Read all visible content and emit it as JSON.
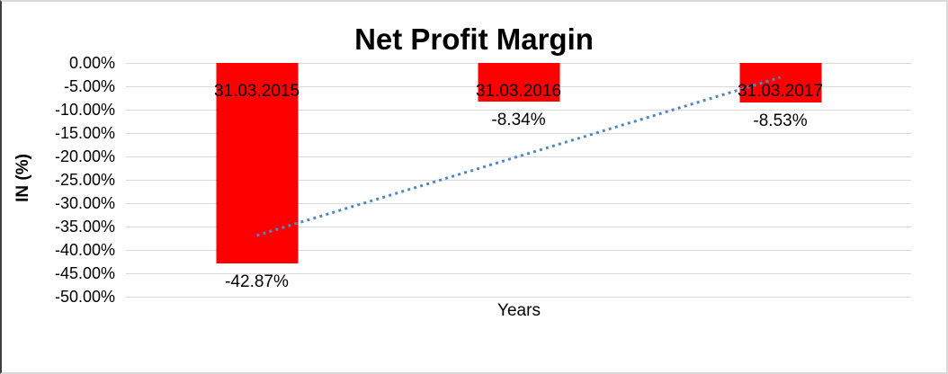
{
  "chart_data": {
    "type": "bar",
    "title": "Net Profit Margin",
    "xlabel": "Years",
    "ylabel": "IN (%)",
    "categories": [
      "31.03.2015",
      "31.03.2016",
      "31.03.2017"
    ],
    "values": [
      -42.87,
      -8.34,
      -8.53
    ],
    "data_labels": [
      "-42.87%",
      "-8.34%",
      "-8.53%"
    ],
    "yticks": [
      "0.00%",
      "-5.00%",
      "-10.00%",
      "-15.00%",
      "-20.00%",
      "-25.00%",
      "-30.00%",
      "-35.00%",
      "-40.00%",
      "-45.00%",
      "-50.00%"
    ],
    "ylim": [
      -50,
      0
    ],
    "grid": "horizontal",
    "legend": "none",
    "bar_color": "#ff0000",
    "gridline_color": "#d9d9d9",
    "text_color": "#000000",
    "trendline": {
      "type": "linear",
      "style": "dotted",
      "color": "#4f87c5",
      "points": [
        {
          "category_index": 0,
          "value": -36.9
        },
        {
          "category_index": 2,
          "value": -3.1
        }
      ]
    }
  }
}
